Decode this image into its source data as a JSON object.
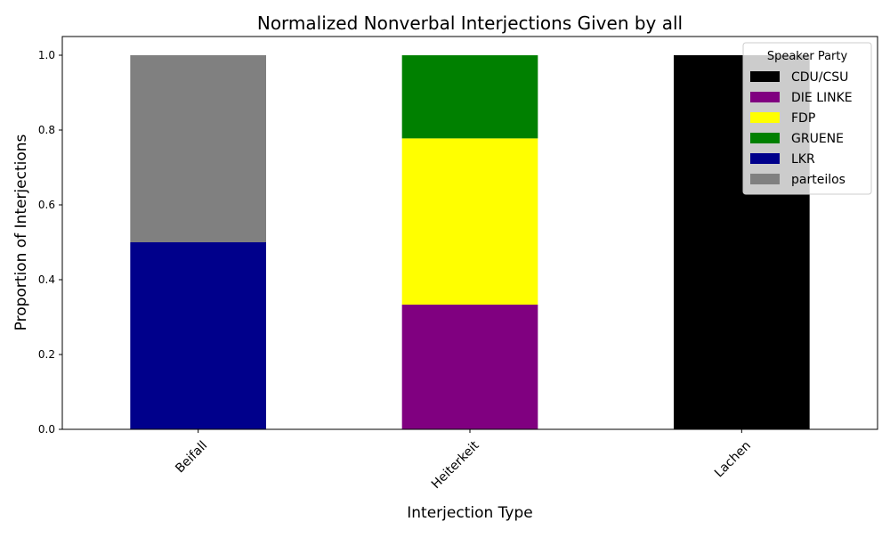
{
  "chart_data": {
    "type": "bar",
    "stacked": true,
    "title": "Normalized Nonverbal Interjections Given by all",
    "xlabel": "Interjection Type",
    "ylabel": "Proportion of Interjections",
    "categories": [
      "Beifall",
      "Heiterkeit",
      "Lachen"
    ],
    "ylim": [
      0,
      1.05
    ],
    "yticks": [
      "0.0",
      "0.2",
      "0.4",
      "0.6",
      "0.8",
      "1.0"
    ],
    "grid": false,
    "legend": {
      "title": "Speaker Party",
      "placement": "top-right"
    },
    "series": [
      {
        "name": "CDU/CSU",
        "color": "#000000",
        "values": [
          0,
          0,
          1.0
        ]
      },
      {
        "name": "DIE LINKE",
        "color": "#800080",
        "values": [
          0,
          0.3333,
          0
        ]
      },
      {
        "name": "FDP",
        "color": "#ffff00",
        "values": [
          0,
          0.4444,
          0
        ]
      },
      {
        "name": "GRUENE",
        "color": "#008000",
        "values": [
          0,
          0.2222,
          0
        ]
      },
      {
        "name": "LKR",
        "color": "#00008b",
        "values": [
          0.5,
          0,
          0
        ]
      },
      {
        "name": "parteilos",
        "color": "#808080",
        "values": [
          0.5,
          0,
          0
        ]
      }
    ]
  }
}
